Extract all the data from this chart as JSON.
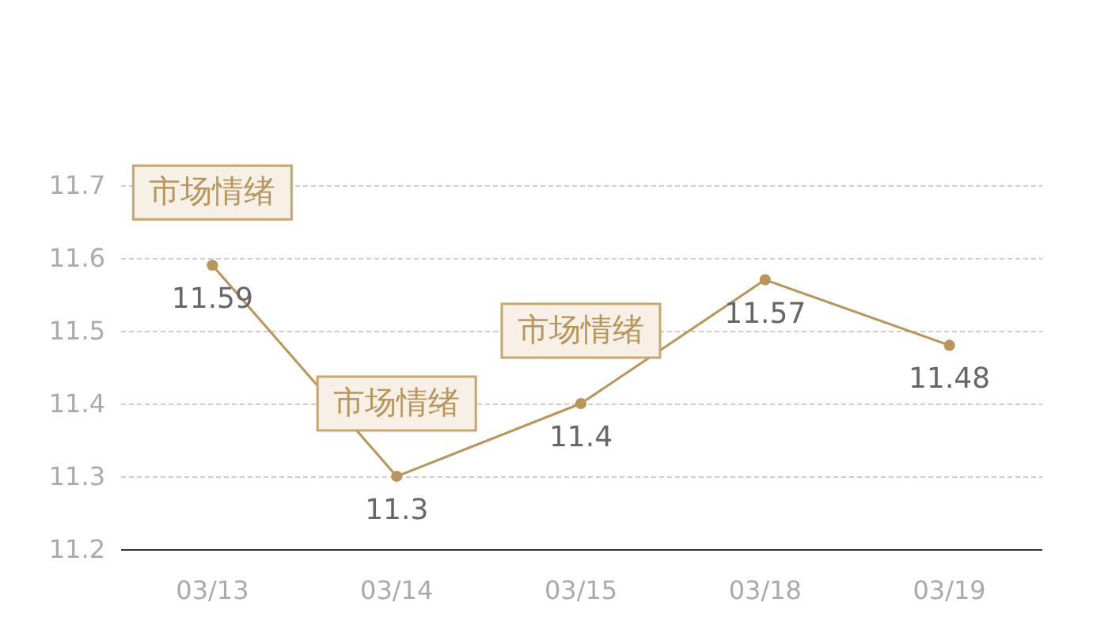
{
  "chart_data": {
    "type": "line",
    "categories": [
      "03/13",
      "03/14",
      "03/15",
      "03/18",
      "03/19"
    ],
    "series": [
      {
        "color": "#b8955a",
        "values": [
          11.59,
          11.3,
          11.4,
          11.57,
          11.48
        ]
      }
    ],
    "ylim": [
      11.2,
      11.7
    ],
    "yticks": [
      11.2,
      11.3,
      11.4,
      11.5,
      11.6,
      11.7
    ],
    "grid": "y",
    "marker": "circle",
    "line_style": "solid",
    "data_labels": true,
    "annotations": [
      {
        "text": "市场情绪",
        "x": "03/13",
        "y": 11.59
      },
      {
        "text": "市场情绪",
        "x": "03/14",
        "y": 11.3
      },
      {
        "text": "市场情绪",
        "x": "03/15",
        "y": 11.4
      }
    ]
  }
}
